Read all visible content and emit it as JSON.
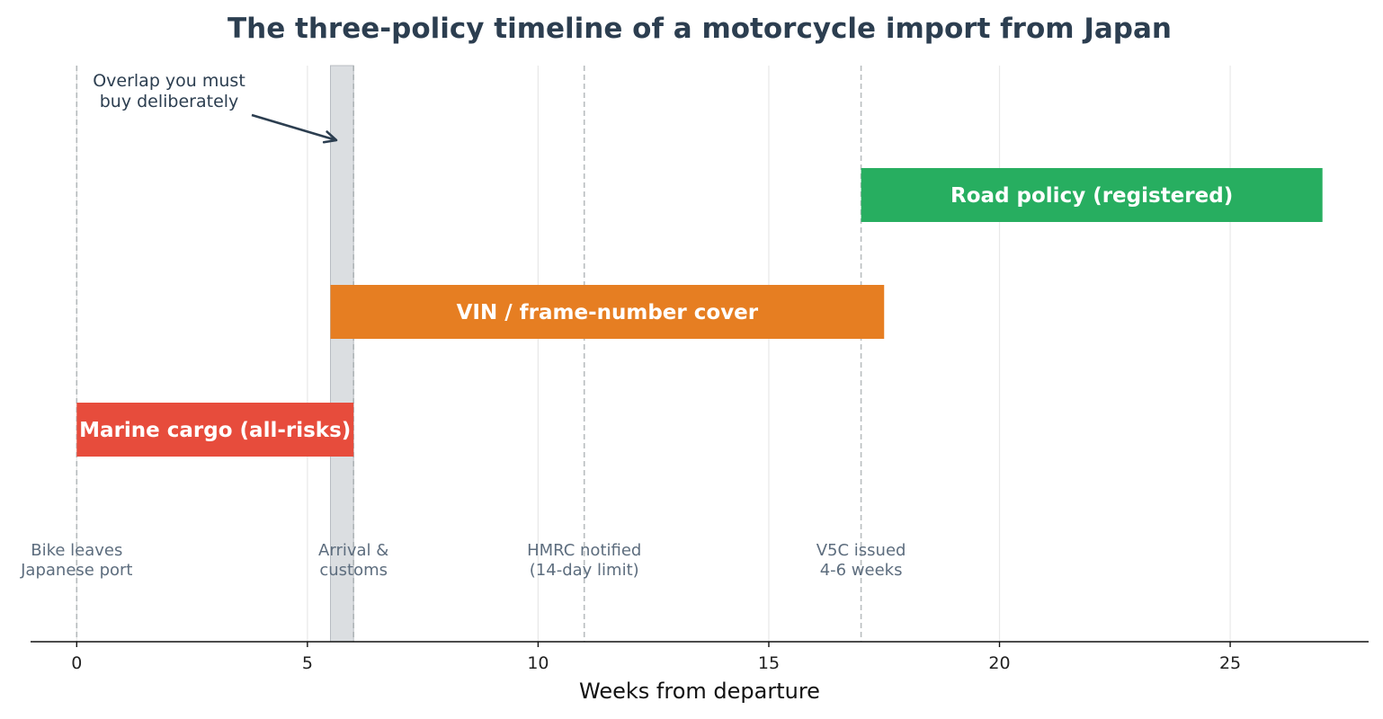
{
  "chart_data": {
    "type": "gantt",
    "title": "The three-policy timeline of a motorcycle import from Japan",
    "xlabel": "Weeks from departure",
    "xlim": [
      -1,
      28
    ],
    "xticks": [
      0,
      5,
      10,
      15,
      20,
      25
    ],
    "grid": true,
    "bars": [
      {
        "label": "Marine cargo (all-risks)",
        "start": 0,
        "end": 6,
        "color": "#e74c3c"
      },
      {
        "label": "VIN / frame-number cover",
        "start": 5.5,
        "end": 17.5,
        "color": "#e67e22"
      },
      {
        "label": "Road policy (registered)",
        "start": 17,
        "end": 27,
        "color": "#27ae60"
      }
    ],
    "milestones": [
      {
        "x": 0,
        "lines": [
          "Bike leaves",
          "Japanese port"
        ]
      },
      {
        "x": 6,
        "lines": [
          "Arrival &",
          "customs"
        ]
      },
      {
        "x": 11,
        "lines": [
          "HMRC notified",
          "(14-day limit)"
        ]
      },
      {
        "x": 17,
        "lines": [
          "V5C issued",
          "4-6 weeks"
        ]
      }
    ],
    "overlap": {
      "start": 5.5,
      "end": 6,
      "color": "#d5d8dc"
    },
    "annotation": {
      "lines": [
        "Overlap you must",
        "buy deliberately"
      ],
      "color": "#2c3e50"
    }
  }
}
